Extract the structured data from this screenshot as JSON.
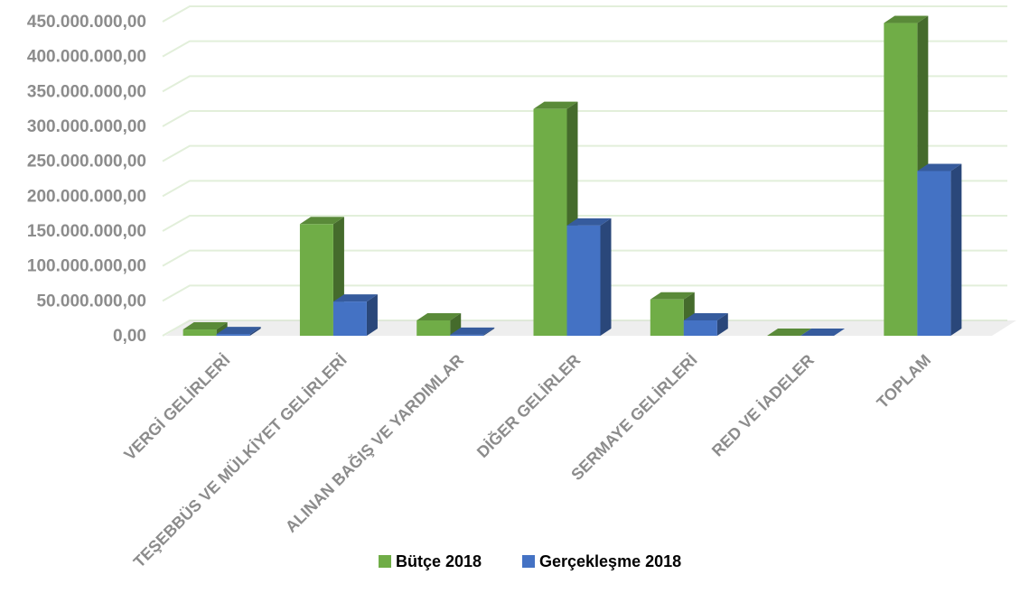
{
  "chart_data": {
    "type": "bar",
    "style": "3d-clustered-column",
    "title": "",
    "xlabel": "",
    "ylabel": "",
    "categories": [
      "VERGİ GELİRLERİ",
      "TEŞEBBÜS VE MÜLKİYET GELİRLERİ",
      "ALINAN BAĞIŞ VE YARDIMLAR",
      "DİĞER GELİRLER",
      "SERMAYE GELİRLERİ",
      "RED VE İADELER",
      "TOPLAM"
    ],
    "series": [
      {
        "name": "Bütçe 2018",
        "color": "#70ad47",
        "values": [
          9000000,
          160000000,
          22000000,
          325000000,
          52000000,
          0,
          448000000
        ]
      },
      {
        "name": "Gerçekleşme 2018",
        "color": "#4472c4",
        "values": [
          2500000,
          49000000,
          1500000,
          158000000,
          22000000,
          0,
          236000000
        ]
      }
    ],
    "yticks": [
      "0,00",
      "50.000.000,00",
      "100.000.000,00",
      "150.000.000,00",
      "200.000.000,00",
      "250.000.000,00",
      "300.000.000,00",
      "350.000.000,00",
      "400.000.000,00",
      "450.000.000,00"
    ],
    "ylim": [
      0,
      450000000
    ],
    "grid": true,
    "legend_position": "bottom"
  }
}
